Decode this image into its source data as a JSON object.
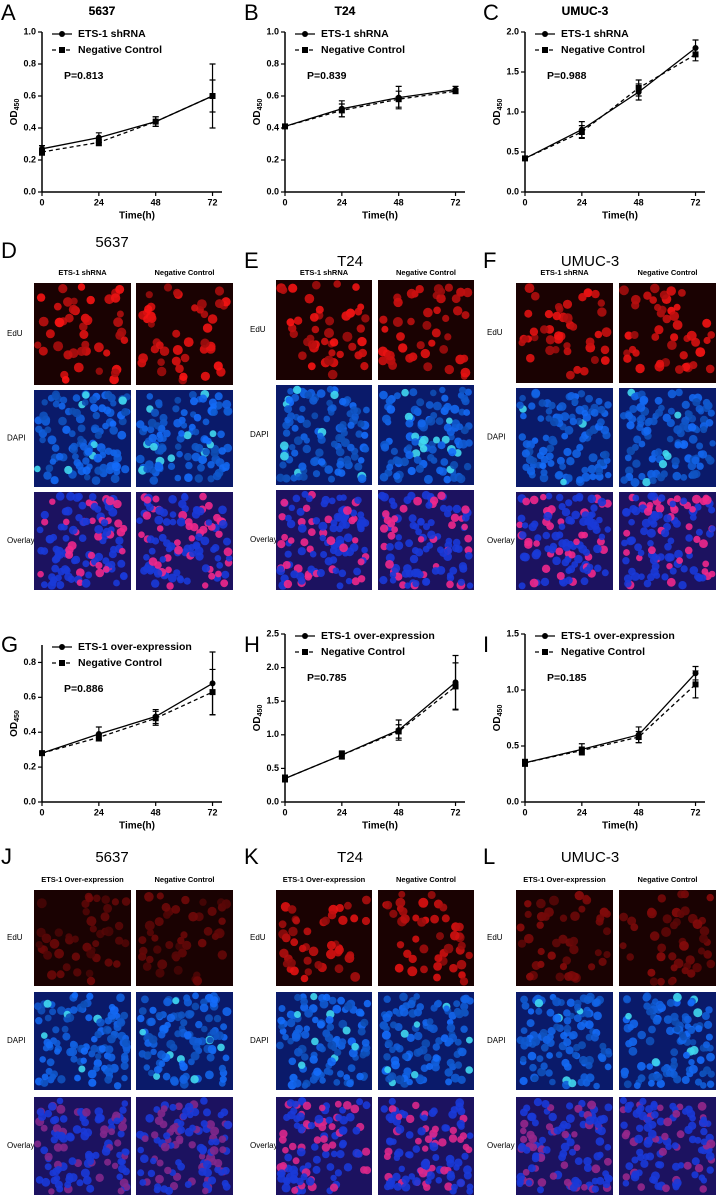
{
  "chart_data": [
    {
      "type": "line",
      "letter": "A",
      "title": "5637",
      "xlabel": "Time(h)",
      "ylabel": "OD",
      "ylabel_sub": "450",
      "annotation": "P=0.813",
      "x": [
        0,
        24,
        48,
        72
      ],
      "xlim": [
        0,
        76
      ],
      "xticks": [
        0,
        24,
        48,
        72
      ],
      "ylim": [
        0,
        1.0
      ],
      "yticks": [
        {
          "value": 0,
          "label": "0.0"
        },
        0.2,
        0.4,
        0.6,
        0.8,
        {
          "value": 1,
          "label": "1.0"
        }
      ],
      "series": [
        {
          "name": "ETS-1 shRNA",
          "color": "#000000",
          "marker": "circle",
          "dash": false,
          "values": [
            0.27,
            0.34,
            0.44,
            0.6
          ],
          "errors": [
            0.02,
            0.03,
            0.03,
            0.2
          ]
        },
        {
          "name": "Negative Control",
          "color": "#000000",
          "marker": "square",
          "dash": true,
          "values": [
            0.25,
            0.31,
            0.44,
            0.6
          ],
          "errors": [
            0.02,
            0.02,
            0.03,
            0.1
          ]
        }
      ]
    },
    {
      "type": "line",
      "letter": "B",
      "title": "T24",
      "xlabel": "Time(h)",
      "ylabel": "OD",
      "ylabel_sub": "450",
      "annotation": "P=0.839",
      "x": [
        0,
        24,
        48,
        72
      ],
      "xlim": [
        0,
        76
      ],
      "xticks": [
        0,
        24,
        48,
        72
      ],
      "ylim": [
        0,
        1.0
      ],
      "yticks": [
        {
          "value": 0,
          "label": "0.0"
        },
        0.2,
        0.4,
        0.6,
        0.8,
        {
          "value": 1,
          "label": "1.0"
        }
      ],
      "series": [
        {
          "name": "ETS-1 shRNA",
          "color": "#000000",
          "marker": "circle",
          "dash": false,
          "values": [
            0.41,
            0.52,
            0.59,
            0.64
          ],
          "errors": [
            0.01,
            0.05,
            0.07,
            0.02
          ]
        },
        {
          "name": "Negative Control",
          "color": "#000000",
          "marker": "square",
          "dash": true,
          "values": [
            0.41,
            0.51,
            0.58,
            0.63
          ],
          "errors": [
            0.01,
            0.04,
            0.05,
            0.01
          ]
        }
      ]
    },
    {
      "type": "line",
      "letter": "C",
      "title": "UMUC-3",
      "xlabel": "Time(h)",
      "ylabel": "OD",
      "ylabel_sub": "450",
      "annotation": "P=0.988",
      "x": [
        0,
        24,
        48,
        72
      ],
      "xlim": [
        0,
        76
      ],
      "xticks": [
        0,
        24,
        48,
        72
      ],
      "ylim": [
        0,
        2.0
      ],
      "yticks": [
        {
          "value": 0,
          "label": "0.0"
        },
        0.5,
        {
          "value": 1,
          "label": "1.0"
        },
        1.5,
        {
          "value": 2,
          "label": "2.0"
        }
      ],
      "series": [
        {
          "name": "ETS-1 shRNA",
          "color": "#000000",
          "marker": "circle",
          "dash": false,
          "values": [
            0.42,
            0.78,
            1.25,
            1.8
          ],
          "errors": [
            0.02,
            0.1,
            0.1,
            0.1
          ]
        },
        {
          "name": "Negative Control",
          "color": "#000000",
          "marker": "square",
          "dash": true,
          "values": [
            0.42,
            0.75,
            1.3,
            1.72
          ],
          "errors": [
            0.02,
            0.08,
            0.1,
            0.08
          ]
        }
      ]
    },
    {
      "type": "line",
      "letter": "G",
      "title": "5637",
      "xlabel": "Time(h)",
      "ylabel": "OD",
      "ylabel_sub": "450",
      "annotation": "P=0.886",
      "x": [
        0,
        24,
        48,
        72
      ],
      "xlim": [
        0,
        76
      ],
      "xticks": [
        0,
        24,
        48,
        72
      ],
      "ylim": [
        0,
        0.9
      ],
      "yticks": [
        {
          "value": 0,
          "label": "0.0"
        },
        0.2,
        0.4,
        0.6,
        0.8
      ],
      "series": [
        {
          "name": "ETS-1 over-expression",
          "color": "#000000",
          "marker": "circle",
          "dash": false,
          "values": [
            0.28,
            0.39,
            0.49,
            0.68
          ],
          "errors": [
            0.01,
            0.04,
            0.04,
            0.18
          ]
        },
        {
          "name": "Negative Control",
          "color": "#000000",
          "marker": "square",
          "dash": true,
          "values": [
            0.28,
            0.37,
            0.48,
            0.63
          ],
          "errors": [
            0.01,
            0.02,
            0.04,
            0.13
          ]
        }
      ]
    },
    {
      "type": "line",
      "letter": "H",
      "title": "T24",
      "xlabel": "Time(h)",
      "ylabel": "OD",
      "ylabel_sub": "450",
      "annotation": "P=0.785",
      "x": [
        0,
        24,
        48,
        72
      ],
      "xlim": [
        0,
        76
      ],
      "xticks": [
        0,
        24,
        48,
        72
      ],
      "ylim": [
        0,
        2.5
      ],
      "yticks": [
        {
          "value": 0,
          "label": "0.0"
        },
        0.5,
        {
          "value": 1,
          "label": "1.0"
        },
        1.5,
        {
          "value": 2,
          "label": "2.0"
        },
        2.5
      ],
      "series": [
        {
          "name": "ETS-1 over-expression",
          "color": "#000000",
          "marker": "circle",
          "dash": false,
          "values": [
            0.35,
            0.7,
            1.07,
            1.78
          ],
          "errors": [
            0.05,
            0.06,
            0.15,
            0.4
          ]
        },
        {
          "name": "Negative Control",
          "color": "#000000",
          "marker": "square",
          "dash": true,
          "values": [
            0.35,
            0.7,
            1.05,
            1.72
          ],
          "errors": [
            0.04,
            0.05,
            0.1,
            0.35
          ]
        }
      ]
    },
    {
      "type": "line",
      "letter": "I",
      "title": "UMUC-3",
      "xlabel": "Time(h)",
      "ylabel": "OD",
      "ylabel_sub": "450",
      "annotation": "P=0.185",
      "x": [
        0,
        24,
        48,
        72
      ],
      "xlim": [
        0,
        76
      ],
      "xticks": [
        0,
        24,
        48,
        72
      ],
      "ylim": [
        0,
        1.5
      ],
      "yticks": [
        {
          "value": 0,
          "label": "0.0"
        },
        0.5,
        {
          "value": 1,
          "label": "1.0"
        },
        1.5
      ],
      "series": [
        {
          "name": "ETS-1 over-expression",
          "color": "#000000",
          "marker": "circle",
          "dash": false,
          "values": [
            0.35,
            0.47,
            0.6,
            1.15
          ],
          "errors": [
            0.03,
            0.05,
            0.07,
            0.06
          ]
        },
        {
          "name": "Negative Control",
          "color": "#000000",
          "marker": "square",
          "dash": true,
          "values": [
            0.35,
            0.46,
            0.58,
            1.05
          ],
          "errors": [
            0.03,
            0.03,
            0.05,
            0.12
          ]
        }
      ]
    }
  ],
  "image_panels": [
    {
      "letter": "D",
      "title": "5637",
      "columns": [
        "ETS-1 shRNA",
        "Negative Control"
      ],
      "rows": [
        "EdU",
        "DAPI",
        "Overlay"
      ]
    },
    {
      "letter": "E",
      "title": "T24",
      "columns": [
        "ETS-1 shRNA",
        "Negative Control"
      ],
      "rows": [
        "EdU",
        "DAPI",
        "Overlay"
      ]
    },
    {
      "letter": "F",
      "title": "UMUC-3",
      "columns": [
        "ETS-1 shRNA",
        "Negative Control"
      ],
      "rows": [
        "EdU",
        "DAPI",
        "Overlay"
      ]
    },
    {
      "letter": "J",
      "title": "5637",
      "columns": [
        "ETS-1 Over-expression",
        "Negative Control"
      ],
      "rows": [
        "EdU",
        "DAPI",
        "Overlay"
      ]
    },
    {
      "letter": "K",
      "title": "T24",
      "columns": [
        "ETS-1 Over-expression",
        "Negative Control"
      ],
      "rows": [
        "EdU",
        "DAPI",
        "Overlay"
      ]
    },
    {
      "letter": "L",
      "title": "UMUC-3",
      "columns": [
        "ETS-1 Over-expression",
        "Negative Control"
      ],
      "rows": [
        "EdU",
        "DAPI",
        "Overlay"
      ]
    }
  ]
}
